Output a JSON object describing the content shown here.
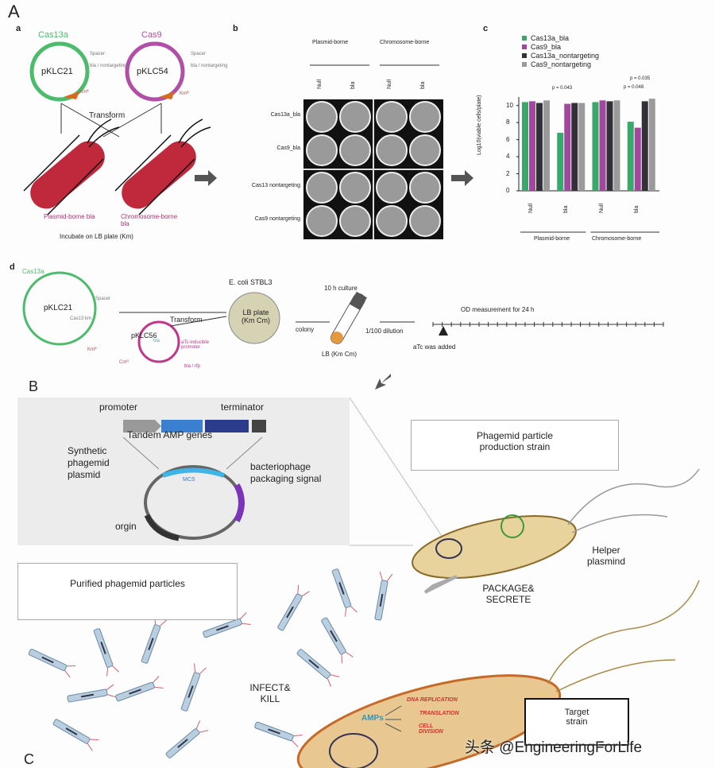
{
  "panelA": {
    "letter": "A",
    "sub_a": "a",
    "plasmid1": {
      "name": "pKLC21",
      "protein": "Cas13a",
      "spacer": "Spacer",
      "target": "bla / nontargeting",
      "marker": "Kmᴿ"
    },
    "plasmid2": {
      "name": "pKLC54",
      "protein": "Cas9",
      "spacer": "Spacer",
      "target": "bla / nontargeting",
      "marker": "Kmᴿ"
    },
    "transform": "Transform",
    "cell1_label": "Plasmid-borne bla",
    "cell2_label": "Chromosome-borne bla",
    "incubate": "Incubate on LB plate (Km)",
    "sub_b": "b",
    "plate_headers": [
      "Plasmid-borne",
      "Chromosome-borne"
    ],
    "plate_cols": [
      "Null",
      "bla",
      "Null",
      "bla"
    ],
    "plate_rows": [
      "Cas13a_bla",
      "Cas9_bla",
      "Cas13 nontargeting",
      "Cas9 nontargeting"
    ],
    "sub_c": "c",
    "sub_d": "d",
    "d": {
      "plasmid1": "pKLC21",
      "protein": "Cas13a",
      "spacer": "Spacer",
      "cas_label": "Cas13 km",
      "marker": "Kmᴿ",
      "plasmid2": "pKLC56",
      "p2_inner": "bla",
      "p2_marker": "Cmᴿ",
      "p2_promoter": "aTc-inducible promoter",
      "p2_gene": "bla / rfp",
      "transform": "Transform",
      "strain": "E. coli STBL3",
      "plate": "LB plate (Km Cm)",
      "colony": "colony",
      "culture": "10 h culture",
      "medium": "LB (Km Cm)",
      "dilution": "1/100 dilution",
      "od": "OD measurement for 24 h",
      "atc": "aTc was added"
    }
  },
  "chart_data": {
    "type": "bar",
    "ylabel": "Log10(viable cells/plate)",
    "ylim": [
      0,
      11
    ],
    "yticks": [
      0,
      2,
      4,
      6,
      8,
      10
    ],
    "categories": [
      "Null",
      "bla",
      "Null",
      "bla"
    ],
    "group_labels": [
      "Plasmid-borne",
      "Chromosome-borne"
    ],
    "series": [
      {
        "name": "Cas13a_bla",
        "color": "#3aa86b",
        "values": [
          10.4,
          6.8,
          10.4,
          8.1
        ]
      },
      {
        "name": "Cas9_bla",
        "color": "#a2479e",
        "values": [
          10.5,
          10.2,
          10.6,
          7.4
        ]
      },
      {
        "name": "Cas13a_nontargeting",
        "color": "#33303a",
        "values": [
          10.3,
          10.3,
          10.5,
          10.5
        ]
      },
      {
        "name": "Cas9_nontargeting",
        "color": "#9a9a9a",
        "values": [
          10.6,
          10.3,
          10.6,
          10.8
        ]
      }
    ],
    "annotations": [
      "p = 0.043",
      "p = 0.035",
      "p = 0.048"
    ],
    "legend": "top-left"
  },
  "panelB": {
    "letter": "B",
    "promoter": "promoter",
    "terminator": "terminator",
    "genes": "Tandem AMP genes",
    "plasmid": "Synthetic phagemid plasmid",
    "mcs": "MCS",
    "signal": "bacteriophage packaging signal",
    "origin": "orgin",
    "production": "Phagemid particle production strain",
    "helper": "Helper plasmind",
    "package": "PACKAGE& SECRETE"
  },
  "panelC": {
    "letter": "C",
    "purified": "Purified phagemid particles",
    "infect": "INFECT& KILL",
    "amps": "AMPs",
    "targets": [
      "DNA REPLICATION",
      "TRANSLATION",
      "CELL DIVISION"
    ],
    "target": "Target strain"
  },
  "watermark": "头条 @EngineeringForLife"
}
